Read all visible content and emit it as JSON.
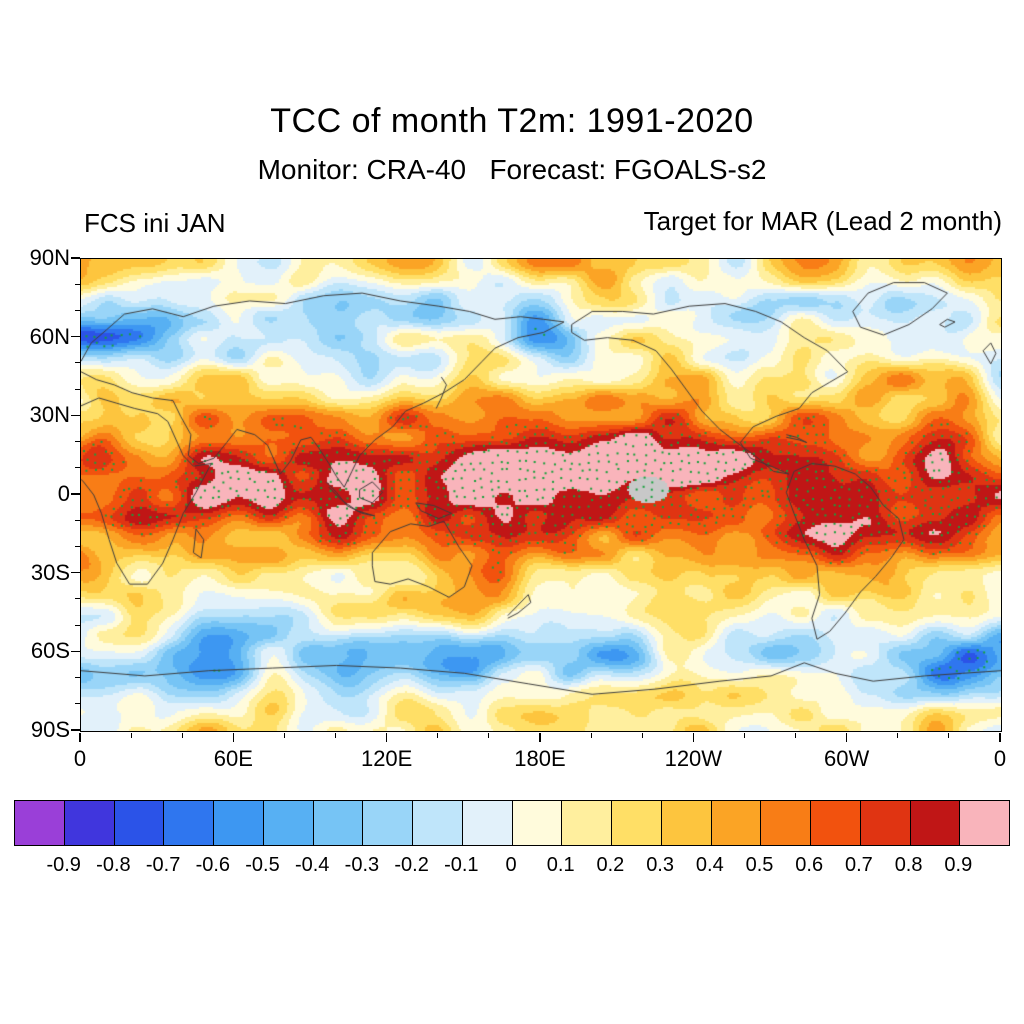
{
  "title": "TCC of month T2m: 1991-2020",
  "subtitle": "Monitor: CRA-40   Forecast: FGOALS-s2",
  "left_label": "FCS ini JAN",
  "right_label": "Target for MAR (Lead 2 month)",
  "axes": {
    "y_ticks": [
      "90N",
      "60N",
      "30N",
      "0",
      "30S",
      "60S",
      "90S"
    ],
    "x_ticks": [
      "0",
      "60E",
      "120E",
      "180E",
      "120W",
      "60W",
      "0"
    ]
  },
  "colorbar": {
    "labels": [
      "-0.9",
      "-0.8",
      "-0.7",
      "-0.6",
      "-0.5",
      "-0.4",
      "-0.3",
      "-0.2",
      "-0.1",
      "0",
      "0.1",
      "0.2",
      "0.3",
      "0.4",
      "0.5",
      "0.6",
      "0.7",
      "0.8",
      "0.9"
    ],
    "colors": [
      "#9a3fd8",
      "#4036dd",
      "#2b53e8",
      "#2f76ef",
      "#3d97f2",
      "#57b0f3",
      "#76c4f5",
      "#99d5f8",
      "#bfe5fa",
      "#e2f1fa",
      "#fffbdc",
      "#ffef9e",
      "#ffdf66",
      "#fdc53e",
      "#fba425",
      "#f87d16",
      "#f2520e",
      "#e03412",
      "#c01616",
      "#f9b4bb"
    ]
  },
  "map": {
    "stipple_color": "#17a13d",
    "coastline_color": "#3c3c3c",
    "missing_color": "#c8c8c8"
  },
  "chart_data": {
    "type": "heatmap",
    "title": "TCC of month T2m: 1991-2020",
    "subtitle": "Monitor: CRA-40   Forecast: FGOALS-s2",
    "panel_labels": {
      "left": "FCS ini JAN",
      "right": "Target for MAR (Lead 2 month)"
    },
    "variable": "Temporal correlation coefficient (TCC) of monthly 2 m temperature, forecast vs monitor, global map",
    "projection": "cylindrical equidistant, longitude 0–360E left to right, latitude 90N top to 90S bottom",
    "x": {
      "ticks": [
        "0",
        "60E",
        "120E",
        "180E",
        "120W",
        "60W",
        "0"
      ],
      "range_deg": [
        0,
        360
      ]
    },
    "y": {
      "ticks": [
        "90N",
        "60N",
        "30N",
        "0",
        "30S",
        "60S",
        "90S"
      ],
      "range_deg": [
        90,
        -90
      ]
    },
    "colorbar_levels": [
      -0.9,
      -0.8,
      -0.7,
      -0.6,
      -0.5,
      -0.4,
      -0.3,
      -0.2,
      -0.1,
      0,
      0.1,
      0.2,
      0.3,
      0.4,
      0.5,
      0.6,
      0.7,
      0.8,
      0.9
    ],
    "colorbar_colors": [
      "#9a3fd8",
      "#4036dd",
      "#2b53e8",
      "#2f76ef",
      "#3d97f2",
      "#57b0f3",
      "#76c4f5",
      "#99d5f8",
      "#bfe5fa",
      "#e2f1fa",
      "#fffbdc",
      "#ffef9e",
      "#ffdf66",
      "#fdc53e",
      "#fba425",
      "#f87d16",
      "#f2520e",
      "#e03412",
      "#c01616",
      "#f9b4bb"
    ],
    "legend_position": "horizontal colorbar below map",
    "grid": false,
    "stippling": "small green dots mark statistically significant correlation regions",
    "pattern_summary": [
      {
        "region": "Tropical Pacific / ENSO region and most tropics (30S-30N)",
        "tcc": "0.7 to >0.9, heavily stippled deep red"
      },
      {
        "region": "Tropical Africa, Indian Ocean, northern South America",
        "tcc": "0.6 to 0.9"
      },
      {
        "region": "Mid-latitude continents and oceans",
        "tcc": "0.1 to 0.5, yellow-orange mottled"
      },
      {
        "region": "Patches near 60N (N. Atlantic, N. Europe, N. Pacific) and Southern Ocean / Antarctic coast",
        "tcc": "-0.6 to -0.1, blue patches"
      },
      {
        "region": "Small gray patch in central equatorial Pacific",
        "tcc": "masked / near 1.0"
      }
    ]
  }
}
